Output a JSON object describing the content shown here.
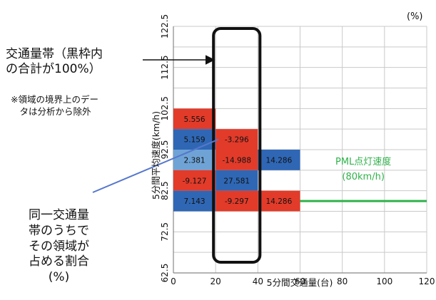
{
  "chart_data": {
    "type": "heatmap",
    "unit": "(%)",
    "xlabel": "5分間交通量(台)",
    "ylabel": "5分間平均速度(km/h)",
    "xlim": [
      0,
      120
    ],
    "ylim": [
      62.5,
      122.5
    ],
    "x_ticks": [
      0,
      20,
      40,
      60,
      80,
      100,
      120
    ],
    "y_ticks": [
      62.5,
      72.5,
      82.5,
      92.5,
      102.5,
      112.5,
      122.5
    ],
    "y_tick_labels": [
      "62.5",
      "72.5",
      "82.5",
      "92.5",
      "102.5",
      "112.5",
      "122.5"
    ],
    "x_bin_width": 20,
    "y_bin_height": 5,
    "cells": [
      {
        "x0": 0,
        "y0": 97.5,
        "value": "5.556",
        "color": "#e23b2a"
      },
      {
        "x0": 0,
        "y0": 92.5,
        "value": "5.159",
        "color": "#2f67b5"
      },
      {
        "x0": 20,
        "y0": 92.5,
        "value": "-3.296",
        "color": "#e23b2a"
      },
      {
        "x0": 0,
        "y0": 87.5,
        "value": "2.381",
        "color": "#6fa3d6"
      },
      {
        "x0": 20,
        "y0": 87.5,
        "value": "-14.988",
        "color": "#e23b2a"
      },
      {
        "x0": 40,
        "y0": 87.5,
        "value": "14.286",
        "color": "#2f67b5"
      },
      {
        "x0": 0,
        "y0": 82.5,
        "value": "-9.127",
        "color": "#e23b2a"
      },
      {
        "x0": 20,
        "y0": 82.5,
        "value": "27.581",
        "color": "#2f67b5"
      },
      {
        "x0": 0,
        "y0": 77.5,
        "value": "7.143",
        "color": "#2f67b5"
      },
      {
        "x0": 20,
        "y0": 77.5,
        "value": "-9.297",
        "color": "#e23b2a"
      },
      {
        "x0": 40,
        "y0": 77.5,
        "value": "14.286",
        "color": "#e23b2a"
      }
    ],
    "highlighted_band": {
      "x0": 20,
      "x1": 40
    },
    "pml_speed_line": {
      "y": 80,
      "x_from": 60,
      "x_to": 120,
      "color": "#2fb24a"
    }
  },
  "annotations": {
    "band_title": "交通量帯（黒枠内\nの合計が100%）",
    "band_note": "※領域の境界上のデー\n　タは分析から除外",
    "share_label": "同一交通量\n帯のうちで\nその領域が\n占める割合\n(%)",
    "pml_label": "PML点灯速度\n(80km/h)"
  },
  "colors": {
    "grid": "#c9c9c9",
    "axis": "#888888",
    "band_frame": "#111111",
    "pointer_line": "#5577cc",
    "arrow": "#111111"
  }
}
